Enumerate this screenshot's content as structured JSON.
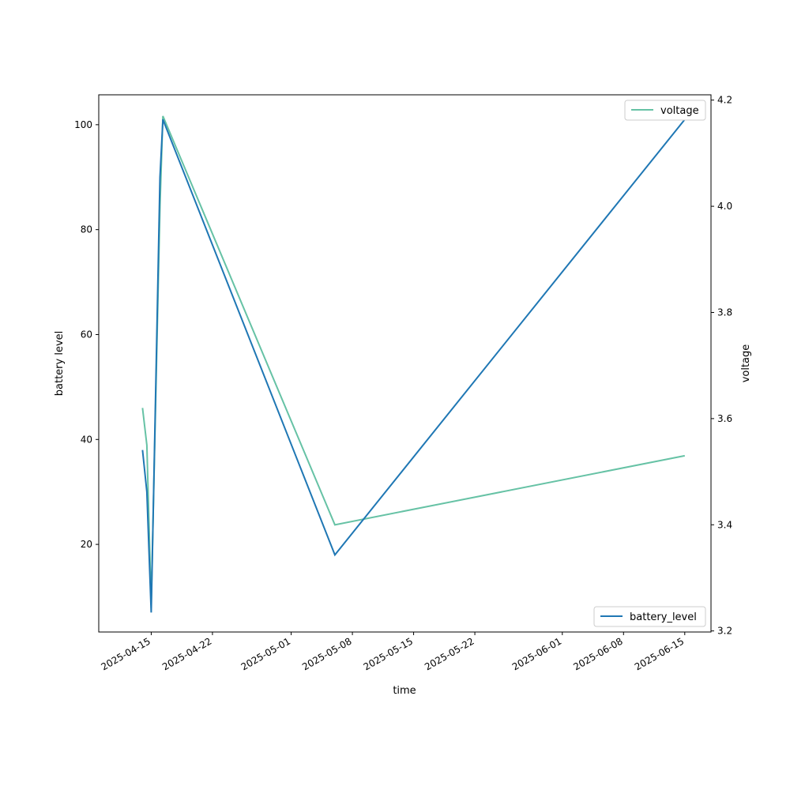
{
  "chart_data": {
    "type": "line",
    "xlabel": "time",
    "y_left_label": "battery level",
    "y_right_label": "voltage",
    "x_ticks": [
      "2025-04-15",
      "2025-04-22",
      "2025-05-01",
      "2025-05-08",
      "2025-05-15",
      "2025-05-22",
      "2025-06-01",
      "2025-06-08",
      "2025-06-15"
    ],
    "y_left_ticks": [
      20,
      40,
      60,
      80,
      100
    ],
    "y_right_ticks": [
      3.2,
      3.4,
      3.6,
      3.8,
      4.0,
      4.2
    ],
    "x_range": [
      "2025-04-09",
      "2025-06-18"
    ],
    "y_left_range": [
      3.3,
      105.7
    ],
    "y_right_range": [
      3.198,
      4.21
    ],
    "grid": false,
    "series": [
      {
        "name": "battery_level",
        "axis": "left",
        "color": "#1f77b4",
        "legend_position": "lower-right",
        "x": [
          "2025-04-14",
          "2025-04-14 12:00",
          "2025-04-15",
          "2025-04-16",
          "2025-04-16 08:00",
          "2025-05-06",
          "2025-06-15"
        ],
        "values": [
          38,
          30,
          7,
          90,
          101,
          18,
          101
        ]
      },
      {
        "name": "voltage",
        "axis": "right",
        "color": "#66c2a5",
        "legend_position": "upper-right",
        "x": [
          "2025-04-14",
          "2025-04-14 12:00",
          "2025-04-15",
          "2025-04-16",
          "2025-04-16 08:00",
          "2025-05-06",
          "2025-06-15"
        ],
        "values": [
          3.62,
          3.55,
          3.25,
          4.0,
          4.17,
          3.4,
          3.53
        ]
      }
    ]
  }
}
